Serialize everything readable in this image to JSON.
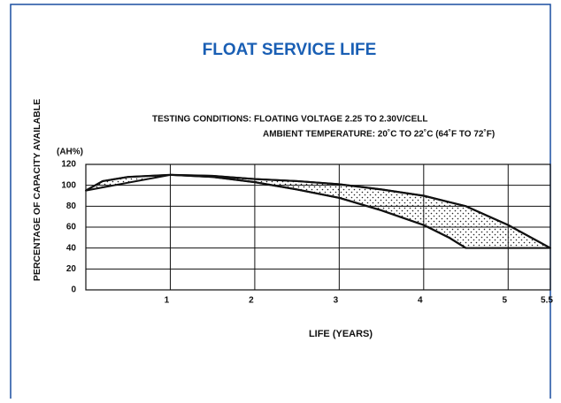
{
  "chart_data": {
    "type": "line",
    "title": "FLOAT SERVICE LIFE",
    "subtitle": [
      "TESTING CONDITIONS: FLOATING VOLTAGE 2.25 TO 2.30V/CELL",
      "AMBIENT TEMPERATURE: 20˚C TO 22˚C (64˚F TO 72˚F)"
    ],
    "y_label": "PERCENTAGE OF CAPACITY AVAILABLE",
    "y_unit": "(AH%)",
    "x_label": "LIFE (YEARS)",
    "xlim": [
      0,
      5.5
    ],
    "ylim": [
      0,
      120
    ],
    "xticks": [
      1,
      2,
      3,
      4,
      5,
      5.5
    ],
    "yticks": [
      0,
      20,
      40,
      60,
      80,
      100,
      120
    ],
    "grid": true,
    "fill_between": true,
    "series": [
      {
        "name": null,
        "color": "#111111",
        "x": [
          0,
          0.2,
          0.5,
          1,
          1.5,
          2,
          2.5,
          3,
          3.5,
          4,
          4.5,
          5,
          5.5
        ],
        "values": [
          95,
          104,
          108,
          110,
          109,
          106,
          104,
          101,
          96,
          90,
          80,
          62,
          40
        ]
      },
      {
        "name": null,
        "color": "#111111",
        "x": [
          1,
          1.5,
          2,
          2.5,
          3,
          3.5,
          4,
          4.3,
          4.5
        ],
        "values": [
          110,
          108,
          103,
          96,
          88,
          76,
          62,
          50,
          40
        ]
      }
    ]
  }
}
